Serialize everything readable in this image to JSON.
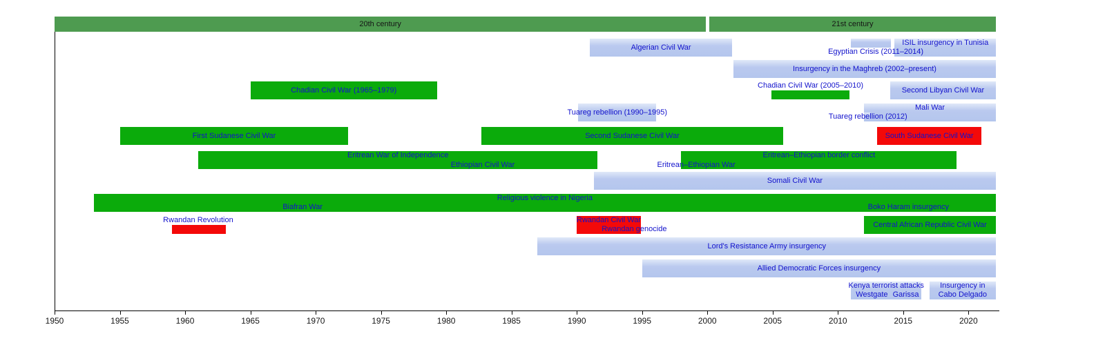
{
  "colors": {
    "green_bar": "#0bab0b",
    "blue_bar": "#b4c6ed",
    "red_bar": "#f40909",
    "century_band": "#4e9b50",
    "link_label": "#1212cc",
    "axis": "#000000"
  },
  "chart_data": {
    "type": "timeline-gantt",
    "title": "",
    "x_axis": {
      "min": 1950,
      "max": 2022.1,
      "ticks": [
        1950,
        1955,
        1960,
        1965,
        1970,
        1975,
        1980,
        1985,
        1990,
        1995,
        2000,
        2005,
        2010,
        2015,
        2020
      ]
    },
    "century_bands": [
      {
        "label": "20th century",
        "start": 1950,
        "end": 1999.9
      },
      {
        "label": "21st century",
        "start": 2000.15,
        "end": 2022.1
      }
    ],
    "rows": [
      {
        "items": [
          {
            "kind": "bar",
            "name": "algerian-civil-war",
            "label": "Algerian Civil War",
            "start": 1991,
            "end": 2001.9,
            "color": "blue",
            "line": 0,
            "span": 2
          },
          {
            "kind": "bar",
            "name": "egyptian-crisis",
            "label": "",
            "start": 2011,
            "end": 2014.05,
            "color": "blue",
            "line": 0,
            "span": 1
          },
          {
            "kind": "bar",
            "name": "isil-insurgency-in-tunisia",
            "label": "ISIL insurgency in Tunisia",
            "start": 2014.35,
            "end": 2022.1,
            "color": "blue",
            "line": 0,
            "span": 2,
            "label_line": 0
          },
          {
            "kind": "text",
            "name": "egyptian-crisis-label",
            "label": "Egyptian Crisis (2011–2014)",
            "center": 2012.9,
            "line": 1
          }
        ]
      },
      {
        "items": [
          {
            "kind": "bar",
            "name": "insurgency-in-the-maghreb",
            "label": "Insurgency in the Maghreb (2002–present)",
            "start": 2002,
            "end": 2022.1,
            "color": "blue",
            "line": 0,
            "span": 2
          }
        ]
      },
      {
        "items": [
          {
            "kind": "bar",
            "name": "chadian-civil-war-1965",
            "label": "Chadian Civil War (1965–1979)",
            "start": 1965,
            "end": 1979.3,
            "color": "green",
            "line": 0,
            "span": 2
          },
          {
            "kind": "text",
            "name": "chadian-civil-war-2005-label",
            "label": "Chadian Civil War (2005–2010)",
            "center": 2007.9,
            "line": 0
          },
          {
            "kind": "bar",
            "name": "chadian-civil-war-2005",
            "label": "",
            "start": 2004.9,
            "end": 2010.9,
            "color": "green",
            "line": 1,
            "span": 1
          },
          {
            "kind": "bar",
            "name": "second-libyan-civil-war",
            "label": "Second Libyan Civil War",
            "start": 2014,
            "end": 2022.1,
            "color": "blue",
            "line": 0,
            "span": 2
          }
        ]
      },
      {
        "items": [
          {
            "kind": "bar",
            "name": "tuareg-rebellion-1990",
            "label": "Tuareg rebellion (1990–1995)",
            "start": 1990.1,
            "end": 1996.1,
            "color": "blue",
            "line": 0,
            "span": 2
          },
          {
            "kind": "bar",
            "name": "mali-war",
            "label": "Mali War",
            "start": 2012,
            "end": 2022.1,
            "color": "blue",
            "line": 0,
            "span": 2,
            "label_line": 0
          },
          {
            "kind": "bar",
            "name": "tuareg-rebellion-2012",
            "label": "",
            "start": 2012,
            "end": 2012.45,
            "color": "blue",
            "line": 1,
            "span": 1
          },
          {
            "kind": "text",
            "name": "tuareg-rebellion-2012-label",
            "label": "Tuareg rebellion (2012)",
            "center": 2012.3,
            "line": 1
          }
        ]
      },
      {
        "items": [
          {
            "kind": "bar",
            "name": "first-sudanese-civil-war",
            "label": "First Sudanese Civil War",
            "start": 1955,
            "end": 1972.5,
            "color": "green",
            "line": 0,
            "span": 2
          },
          {
            "kind": "bar",
            "name": "second-sudanese-civil-war",
            "label": "Second Sudanese Civil War",
            "start": 1982.7,
            "end": 2005.8,
            "color": "green",
            "line": 0,
            "span": 2
          },
          {
            "kind": "bar",
            "name": "south-sudanese-civil-war",
            "label": "South Sudanese Civil War",
            "start": 2013,
            "end": 2021,
            "color": "red",
            "line": 0,
            "span": 2
          }
        ]
      },
      {
        "items": [
          {
            "kind": "bar",
            "name": "eritrean-war-of-independence",
            "label": "Eritrean War of Independence",
            "start": 1961,
            "end": 1991.6,
            "color": "green",
            "line": 0,
            "span": 2,
            "label_line": 0
          },
          {
            "kind": "bar",
            "name": "ethiopian-civil-war",
            "label": "Ethiopian Civil War",
            "start": 1974,
            "end": 1991.6,
            "color": "green",
            "line": 1,
            "span": 1
          },
          {
            "kind": "bar",
            "name": "eritrean-ethiopian-border-conflict",
            "label": "Eritrean–Ethiopian border conflict",
            "start": 1998,
            "end": 2019.1,
            "color": "green",
            "line": 0,
            "span": 2,
            "label_line": 0
          },
          {
            "kind": "bar",
            "name": "eritrean-ethiopian-war",
            "label": "Eritrean–Ethiopian War",
            "start": 1998,
            "end": 2000.3,
            "color": "green",
            "line": 1,
            "span": 1
          }
        ]
      },
      {
        "items": [
          {
            "kind": "bar",
            "name": "somali-civil-war",
            "label": "Somali Civil War",
            "start": 1991.3,
            "end": 2022.1,
            "color": "blue",
            "line": 0,
            "span": 2
          }
        ]
      },
      {
        "items": [
          {
            "kind": "bar",
            "name": "religious-violence-in-nigeria",
            "label": "Religious violence in Nigeria",
            "start": 1953,
            "end": 2022.1,
            "color": "green",
            "line": 0,
            "span": 2,
            "label_line": 0
          },
          {
            "kind": "text",
            "name": "biafran-war-label",
            "label": "Biafran War",
            "center": 1969,
            "line": 1
          },
          {
            "kind": "text",
            "name": "boko-haram-insurgency-label",
            "label": "Boko Haram insurgency",
            "center": 2015.4,
            "line": 1
          }
        ]
      },
      {
        "items": [
          {
            "kind": "text",
            "name": "rwandan-revolution-label",
            "label": "Rwandan Revolution",
            "center": 1961,
            "line": 0
          },
          {
            "kind": "bar",
            "name": "rwandan-revolution",
            "label": "",
            "start": 1959,
            "end": 1963.1,
            "color": "red",
            "line": 1,
            "span": 1
          },
          {
            "kind": "bar",
            "name": "rwandan-civil-war",
            "label": "Rwandan Civil War",
            "start": 1990,
            "end": 1994.9,
            "color": "red",
            "line": 0,
            "span": 2,
            "label_line": 0
          },
          {
            "kind": "text",
            "name": "rwandan-genocide-label",
            "label": "Rwandan genocide",
            "center": 1994.4,
            "line": 1
          },
          {
            "kind": "bar",
            "name": "central-african-republic-civil-war",
            "label": "Central African Republic Civil War",
            "start": 2012,
            "end": 2022.1,
            "color": "green",
            "line": 0,
            "span": 2
          }
        ]
      },
      {
        "items": [
          {
            "kind": "bar",
            "name": "lords-resistance-army-insurgency",
            "label": "Lord's Resistance Army insurgency",
            "start": 1987,
            "end": 2022.1,
            "color": "blue",
            "line": 0,
            "span": 2
          }
        ]
      },
      {
        "items": [
          {
            "kind": "bar",
            "name": "allied-democratic-forces-insurgency",
            "label": "Allied Democratic Forces insurgency",
            "start": 1995,
            "end": 2022.1,
            "color": "blue",
            "line": 0,
            "span": 2
          }
        ]
      },
      {
        "items": [
          {
            "kind": "bar",
            "name": "kenya-terrorist-attacks",
            "label": "",
            "start": 2011,
            "end": 2016.4,
            "color": "blue",
            "line": 0,
            "span": 2
          },
          {
            "kind": "text",
            "name": "kenya-terrorist-attacks-label",
            "label": "Kenya terrorist attacks",
            "center": 2013.7,
            "line": 0
          },
          {
            "kind": "text",
            "name": "westgate-label",
            "label": "Westgate",
            "center": 2012.6,
            "line": 1
          },
          {
            "kind": "text",
            "name": "garissa-label",
            "label": "Garissa",
            "center": 2015.2,
            "line": 1
          },
          {
            "kind": "bar",
            "name": "insurgency-in-cabo-delgado",
            "label": "",
            "label_lines": [
              "Insurgency in",
              "Cabo Delgado"
            ],
            "start": 2017,
            "end": 2022.1,
            "color": "blue",
            "line": 0,
            "span": 2
          }
        ]
      }
    ]
  }
}
